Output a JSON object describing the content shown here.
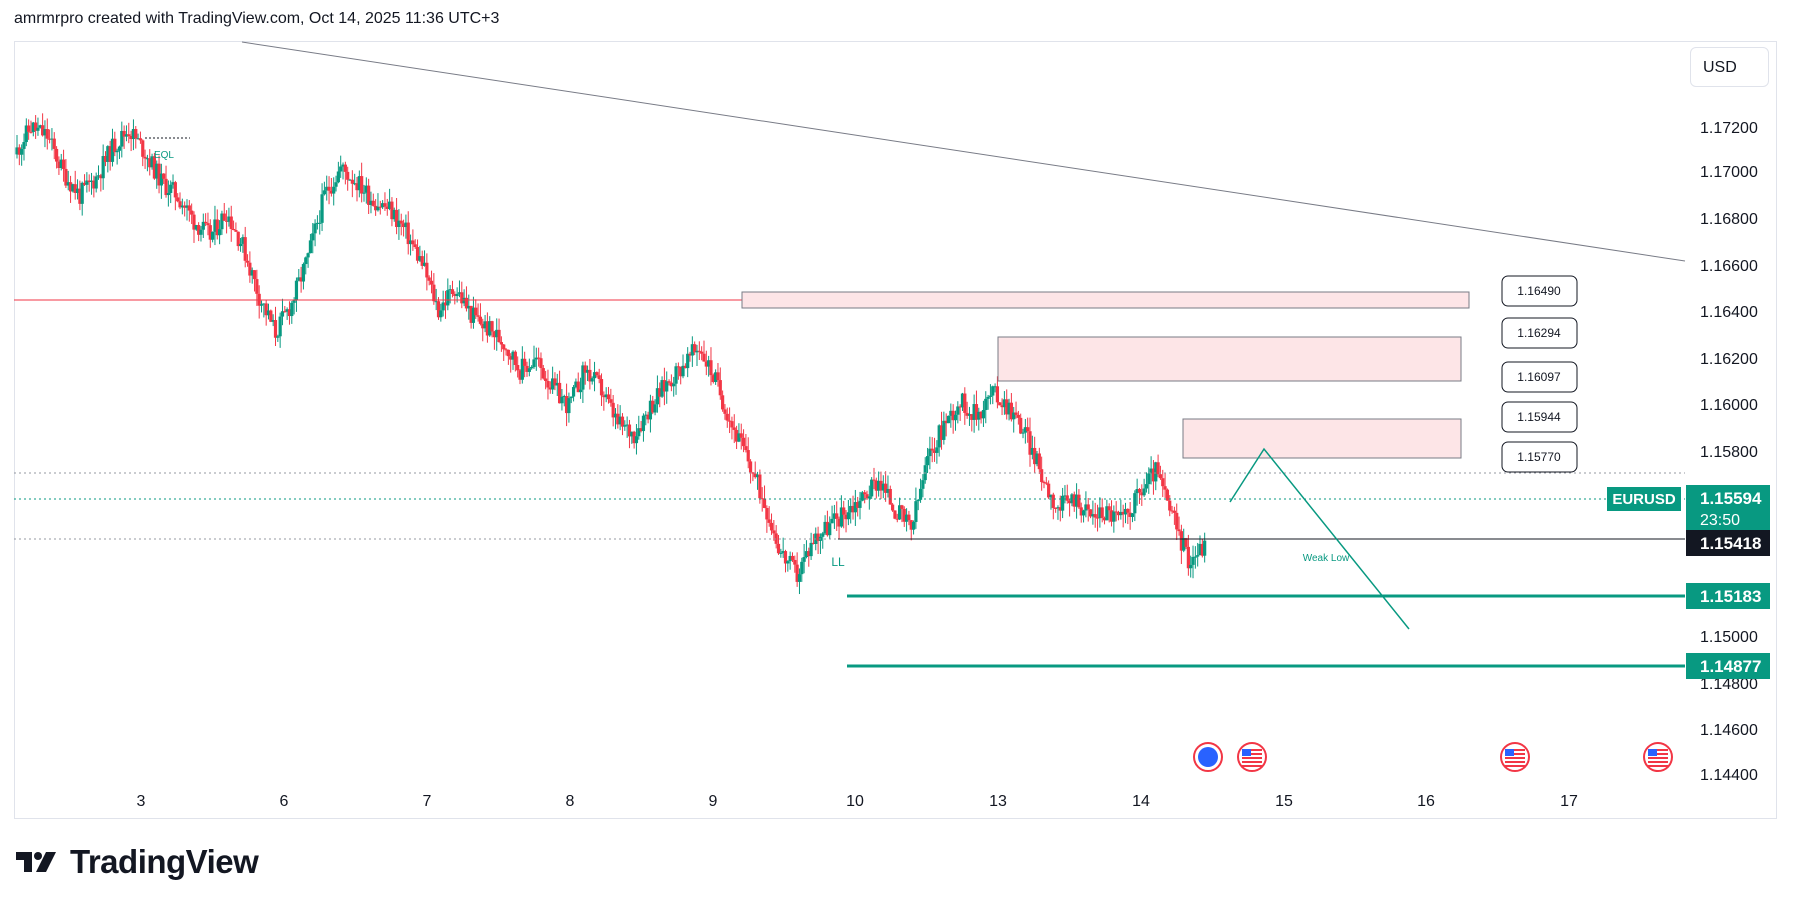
{
  "header": {
    "text": "amrmrpro created with TradingView.com, Oct 14, 2025 11:36 UTC+3"
  },
  "brand": {
    "name": "TradingView"
  },
  "currency_button": {
    "label": "USD"
  },
  "colors": {
    "up": "#089981",
    "down": "#f23645",
    "zone_fill": "#fde5e7",
    "zone_stroke": "#787b86",
    "target": "#089981",
    "symbol_badge": "#089981"
  },
  "chart_data": {
    "type": "candlestick",
    "symbol": "EURUSD",
    "ylim": [
      1.144,
      1.178
    ],
    "y_ticks": [
      "1.17200",
      "1.17000",
      "1.16800",
      "1.16600",
      "1.16400",
      "1.16200",
      "1.16000",
      "1.15800",
      "1.15000",
      "1.14800",
      "1.14600",
      "1.14400"
    ],
    "x_ticks": [
      "3",
      "6",
      "7",
      "8",
      "9",
      "10",
      "13",
      "14",
      "15",
      "16",
      "17"
    ],
    "current_price": {
      "value": "1.15594",
      "countdown": "23:50",
      "label": "EURUSD"
    },
    "price_tags": [
      {
        "value": "1.15418",
        "style": "dark"
      },
      {
        "value": "1.15183",
        "style": "green"
      },
      {
        "value": "1.14877",
        "style": "green"
      }
    ],
    "zone_labels": [
      "1.16490",
      "1.16294",
      "1.16097",
      "1.15944",
      "1.15770"
    ],
    "annotations": [
      "EQL",
      "LL",
      "Weak Low"
    ],
    "ohlc_path": [
      1.173,
      1.1742,
      1.1738,
      1.1722,
      1.1712,
      1.172,
      1.1733,
      1.1741,
      1.1731,
      1.1718,
      1.1712,
      1.1701,
      1.1694,
      1.1705,
      1.169,
      1.1668,
      1.1652,
      1.1665,
      1.1685,
      1.1712,
      1.1724,
      1.1718,
      1.171,
      1.1706,
      1.1696,
      1.1682,
      1.1662,
      1.1672,
      1.166,
      1.1654,
      1.1648,
      1.1636,
      1.164,
      1.1628,
      1.162,
      1.1636,
      1.1627,
      1.1612,
      1.1608,
      1.162,
      1.163,
      1.1638,
      1.1646,
      1.1631,
      1.1612,
      1.1596,
      1.1578,
      1.1556,
      1.1546,
      1.1562,
      1.1568,
      1.1574,
      1.158,
      1.1588,
      1.1575,
      1.1566,
      1.1596,
      1.1612,
      1.1622,
      1.1616,
      1.1626,
      1.162,
      1.1608,
      1.159,
      1.1575,
      1.158,
      1.1572,
      1.1574,
      1.157,
      1.1582,
      1.1592,
      1.1572,
      1.1553,
      1.1559
    ]
  }
}
